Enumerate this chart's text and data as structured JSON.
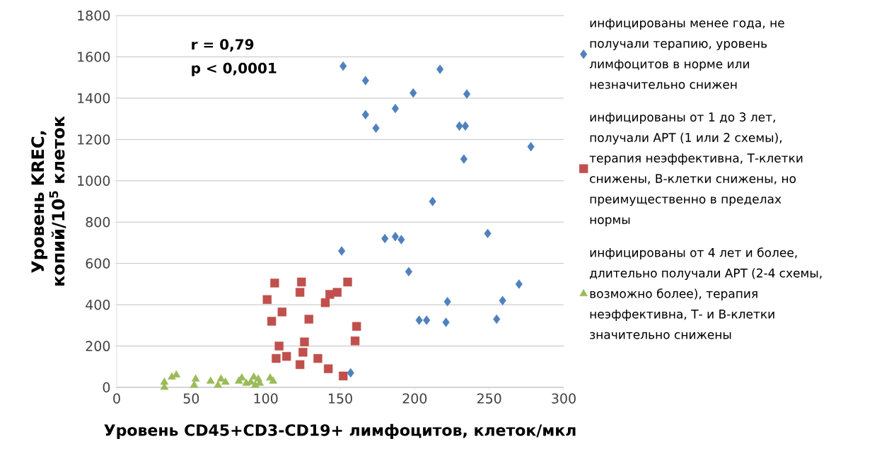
{
  "chart_data": {
    "type": "scatter",
    "xlabel": "Уровень CD45+CD3-CD19+ лимфоцитов, клеток/мкл",
    "ylabel": "Уровень KREC, копий/10$^{5}$ клеток",
    "annotations": [
      "r = 0,79",
      "p < 0,0001"
    ],
    "xlim": [
      0,
      300
    ],
    "xticks": [
      0,
      50,
      100,
      150,
      200,
      250,
      300
    ],
    "ylim": [
      0,
      1800
    ],
    "yticks": [
      0,
      200,
      400,
      600,
      800,
      1000,
      1200,
      1400,
      1600,
      1800
    ],
    "grid": "y",
    "legend": "right",
    "series": [
      {
        "name": "инфицированы менее года, не получали терапию, уровень лимфоцитов в норме или незначительно снижен",
        "color": "#4f81bd",
        "marker": "diamond",
        "x": [
          152,
          167,
          217,
          199,
          235,
          187,
          167,
          174,
          230,
          234,
          233,
          278,
          212,
          249,
          180,
          187,
          191,
          151,
          196,
          222,
          259,
          270,
          203,
          208,
          221,
          255,
          157
        ],
        "values": [
          1555,
          1485,
          1540,
          1425,
          1420,
          1350,
          1320,
          1255,
          1265,
          1265,
          1105,
          1165,
          900,
          745,
          720,
          730,
          715,
          660,
          560,
          415,
          420,
          500,
          325,
          325,
          315,
          330,
          70
        ]
      },
      {
        "name": "инфицированы от 1 до 3 лет, получали АРТ (1 или 2 схемы), терапия неэффективна, Т-клетки снижены, В-клетки снижены, но преимущественно в пределах нормы",
        "color": "#c0504d",
        "marker": "square",
        "x": [
          101,
          104,
          106,
          109,
          107,
          111,
          114,
          124,
          123,
          126,
          125,
          123,
          129,
          135,
          140,
          142,
          143,
          148,
          155,
          152,
          160,
          161
        ],
        "values": [
          425,
          320,
          505,
          200,
          140,
          365,
          150,
          510,
          460,
          220,
          170,
          110,
          330,
          140,
          410,
          90,
          450,
          460,
          510,
          55,
          225,
          295
        ]
      },
      {
        "name": "инфицированы от 4 лет и более, длительно получали АРТ (2-4 схемы, возможно более), терапия неэффективна, Т- и В-клетки значительно снижены",
        "color": "#9bbb59",
        "marker": "triangle",
        "x": [
          32,
          32,
          37,
          40,
          53,
          52,
          63,
          68,
          70,
          73,
          82,
          84,
          87,
          90,
          92,
          93,
          95,
          96,
          103,
          105
        ],
        "values": [
          25,
          0,
          50,
          60,
          40,
          10,
          30,
          10,
          40,
          25,
          30,
          45,
          20,
          25,
          50,
          10,
          40,
          20,
          45,
          30
        ]
      }
    ]
  }
}
